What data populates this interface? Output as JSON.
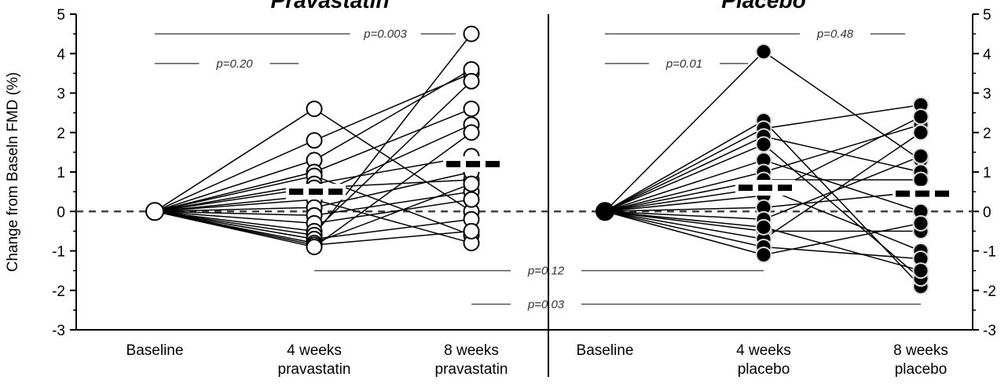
{
  "chart_data": {
    "type": "line",
    "ylabel": "Change from Baseln FMD (%)",
    "ylim": [
      -3,
      5
    ],
    "yticks": [
      -3,
      -2,
      -1,
      0,
      1,
      2,
      3,
      4,
      5
    ],
    "reference_line": 0,
    "panels": [
      {
        "title": "Pravastatin",
        "marker": "open",
        "categories": [
          "Baseline",
          "4 weeks\npravastatin",
          "8 weeks\npravastatin"
        ],
        "subjects": [
          [
            0,
            2.6,
            0.0
          ],
          [
            0,
            1.8,
            3.5
          ],
          [
            0,
            1.3,
            3.6
          ],
          [
            0,
            1.0,
            2.6
          ],
          [
            0,
            0.9,
            -0.6
          ],
          [
            0,
            0.7,
            1.4
          ],
          [
            0,
            0.6,
            0.8
          ],
          [
            0,
            0.4,
            2.2
          ],
          [
            0,
            0.3,
            -0.8
          ],
          [
            0,
            0.1,
            1.0
          ],
          [
            0,
            -0.1,
            0.5
          ],
          [
            0,
            -0.3,
            0.3
          ],
          [
            0,
            -0.5,
            3.3
          ],
          [
            0,
            -0.6,
            4.5
          ],
          [
            0,
            -0.7,
            -0.2
          ],
          [
            0,
            -0.8,
            0.7
          ],
          [
            0,
            -0.85,
            -0.5
          ],
          [
            0,
            -0.9,
            2.0
          ]
        ],
        "means": [
          0,
          0.5,
          1.2
        ],
        "pvalues": [
          {
            "label": "p=0.003",
            "y": 4.5,
            "from": 0,
            "to": 2
          },
          {
            "label": "p=0.20",
            "y": 3.75,
            "from": 0,
            "to": 1
          }
        ]
      },
      {
        "title": "Placebo",
        "marker": "filled",
        "categories": [
          "Baseline",
          "4 weeks\nplacebo",
          "8 weeks\nplacebo"
        ],
        "subjects": [
          [
            0,
            4.05,
            1.3
          ],
          [
            0,
            2.3,
            -1.9
          ],
          [
            0,
            2.1,
            2.7
          ],
          [
            0,
            1.9,
            1.0
          ],
          [
            0,
            1.7,
            -1.7
          ],
          [
            0,
            1.3,
            0.0
          ],
          [
            0,
            1.0,
            2.2
          ],
          [
            0,
            0.6,
            -1.0
          ],
          [
            0,
            0.4,
            2.4
          ],
          [
            0,
            0.1,
            0.5
          ],
          [
            0,
            -0.2,
            1.4
          ],
          [
            0,
            -0.5,
            -0.5
          ],
          [
            0,
            -0.7,
            2.0
          ],
          [
            0,
            -0.9,
            -1.2
          ],
          [
            0,
            -1.1,
            -0.3
          ],
          [
            0,
            0.8,
            0.8
          ],
          [
            0,
            -0.4,
            -1.5
          ]
        ],
        "means": [
          0,
          0.6,
          0.45
        ],
        "pvalues": [
          {
            "label": "p=0.48",
            "y": 4.5,
            "from": 0,
            "to": 2
          },
          {
            "label": "p=0.01",
            "y": 3.75,
            "from": 0,
            "to": 1
          }
        ]
      }
    ],
    "cross_pvalues": [
      {
        "label": "p=0.12",
        "y": -1.5
      },
      {
        "label": "p=0.03",
        "y": -2.35
      }
    ]
  }
}
